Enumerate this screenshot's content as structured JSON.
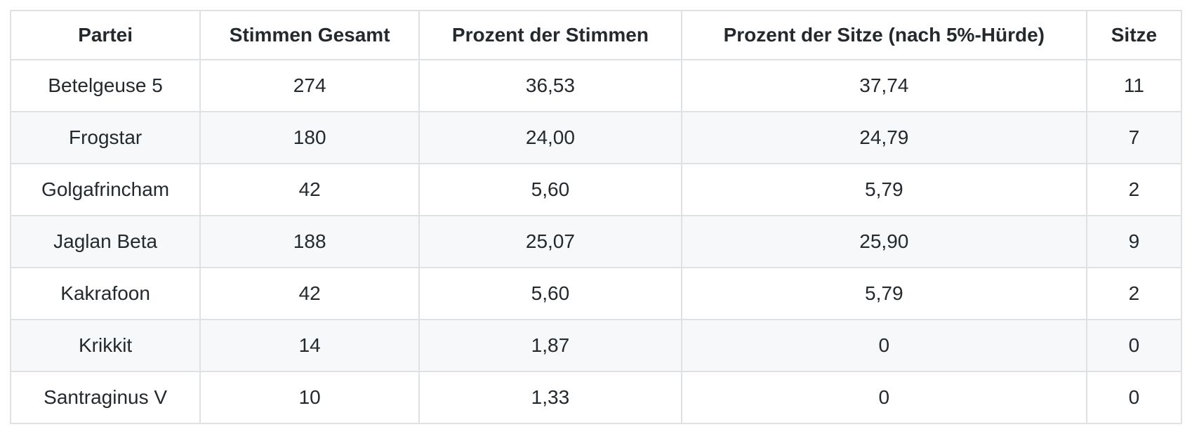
{
  "theme": {
    "background": "#ffffff",
    "stripe": "#f6f8fa",
    "border": "#dfe2e5",
    "text": "#24292e"
  },
  "table": {
    "columns": [
      "Partei",
      "Stimmen Gesamt",
      "Prozent der Stimmen",
      "Prozent der Sitze (nach 5%-Hürde)",
      "Sitze"
    ],
    "rows": [
      [
        "Betelgeuse 5",
        "274",
        "36,53",
        "37,74",
        "11"
      ],
      [
        "Frogstar",
        "180",
        "24,00",
        "24,79",
        "7"
      ],
      [
        "Golgafrincham",
        "42",
        "5,60",
        "5,79",
        "2"
      ],
      [
        "Jaglan Beta",
        "188",
        "25,07",
        "25,90",
        "9"
      ],
      [
        "Kakrafoon",
        "42",
        "5,60",
        "5,79",
        "2"
      ],
      [
        "Krikkit",
        "14",
        "1,87",
        "0",
        "0"
      ],
      [
        "Santraginus V",
        "10",
        "1,33",
        "0",
        "0"
      ]
    ]
  }
}
